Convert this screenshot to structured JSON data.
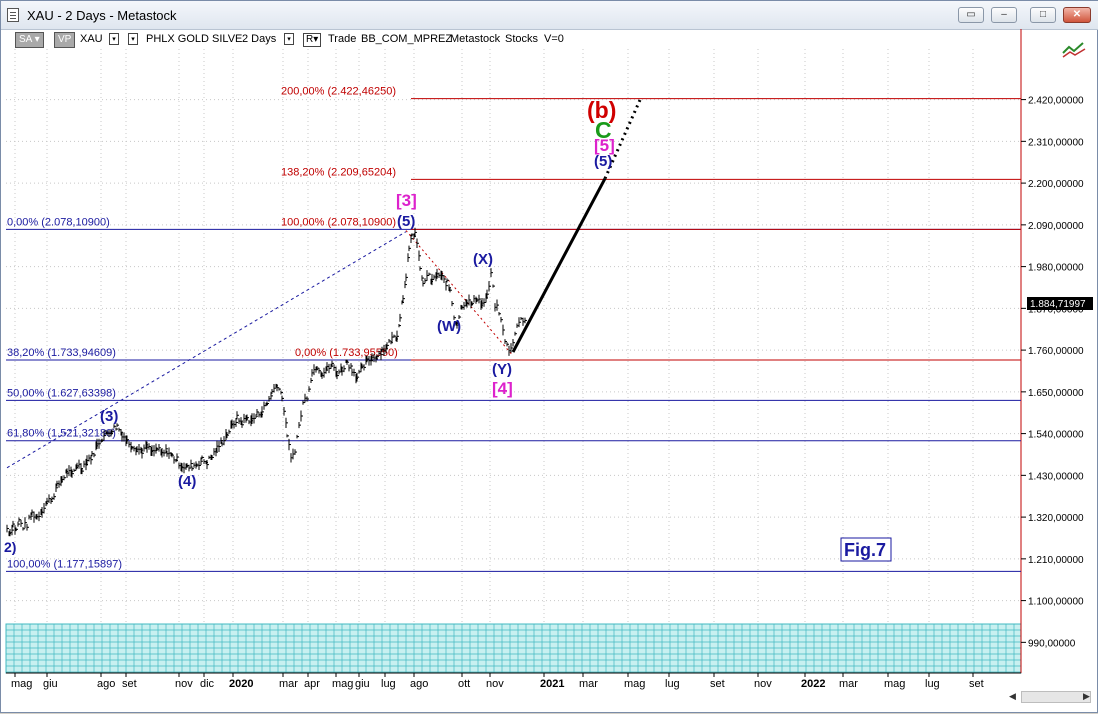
{
  "window": {
    "title": "XAU - 2 Days - Metastock"
  },
  "toolbar": {
    "sa_label": "SA",
    "vp_label": "VP",
    "symbol": "XAU",
    "security_name": "PHLX GOLD SILVE",
    "periodicity": "2 Days",
    "r_label": "R",
    "trade_label": "Trade",
    "template": "BB_COM_MPREZ",
    "source": "Metastock",
    "type": "Stocks",
    "volume": "V=0"
  },
  "figure_label": "Fig.7",
  "last_price_label": "1.884,71997",
  "chart_data": {
    "type": "bar",
    "title": "",
    "price_axis": {
      "ylim": [
        900,
        2520
      ],
      "ticks": [
        {
          "value": 2420,
          "label": "2.420,00000"
        },
        {
          "value": 2310,
          "label": "2.310,00000"
        },
        {
          "value": 2200,
          "label": "2.200,00000"
        },
        {
          "value": 2090,
          "label": "2.090,00000"
        },
        {
          "value": 1980,
          "label": "1.980,00000"
        },
        {
          "value": 1870,
          "label": "1.870,00000"
        },
        {
          "value": 1760,
          "label": "1.760,00000"
        },
        {
          "value": 1650,
          "label": "1.650,00000"
        },
        {
          "value": 1540,
          "label": "1.540,00000"
        },
        {
          "value": 1430,
          "label": "1.430,00000"
        },
        {
          "value": 1320,
          "label": "1.320,00000"
        },
        {
          "value": 1210,
          "label": "1.210,00000"
        },
        {
          "value": 1100,
          "label": "1.100,00000"
        },
        {
          "value": 990,
          "label": "990,00000"
        }
      ]
    },
    "time_axis": {
      "labels": [
        "mag",
        "giu",
        "ago",
        "set",
        "nov",
        "dic",
        "2020",
        "mar",
        "apr",
        "mag",
        "giu",
        "lug",
        "ago",
        "ott",
        "nov",
        "2021",
        "mar",
        "mag",
        "lug",
        "set",
        "nov",
        "2022",
        "mar",
        "mag",
        "lug",
        "set"
      ]
    },
    "grid": true,
    "fib_levels": [
      {
        "label": "0,00% (2.078,10900)",
        "value": 2078.109,
        "color": "#1a1aa0"
      },
      {
        "label": "38,20% (1.733,94609)",
        "value": 1733.94609,
        "color": "#1a1aa0"
      },
      {
        "label": "50,00% (1.627,63398)",
        "value": 1627.63398,
        "color": "#1a1aa0"
      },
      {
        "label": "61,80% (1.521,32188)",
        "value": 1521.32188,
        "color": "#1a1aa0"
      },
      {
        "label": "100,00% (1.177,15897)",
        "value": 1177.15897,
        "color": "#1a1aa0"
      },
      {
        "label": "200,00% (2.422,46250)",
        "value": 2422.4625,
        "color": "#c00000"
      },
      {
        "label": "138,20% (2.209,65204)",
        "value": 2209.65204,
        "color": "#c00000"
      },
      {
        "label": "100,00% (2.078,10900)",
        "value": 2078.109,
        "color": "#c00000"
      },
      {
        "label": "0,00% (1.733,95550)",
        "value": 1733.9555,
        "color": "#c00000"
      }
    ],
    "price_path": [
      [
        0,
        1290
      ],
      [
        3,
        1280
      ],
      [
        6,
        1300
      ],
      [
        9,
        1285
      ],
      [
        12,
        1310
      ],
      [
        16,
        1295
      ],
      [
        20,
        1300
      ],
      [
        25,
        1330
      ],
      [
        30,
        1320
      ],
      [
        35,
        1340
      ],
      [
        40,
        1360
      ],
      [
        45,
        1370
      ],
      [
        50,
        1400
      ],
      [
        55,
        1420
      ],
      [
        60,
        1440
      ],
      [
        65,
        1430
      ],
      [
        70,
        1460
      ],
      [
        75,
        1450
      ],
      [
        80,
        1470
      ],
      [
        85,
        1480
      ],
      [
        90,
        1510
      ],
      [
        95,
        1530
      ],
      [
        100,
        1540
      ],
      [
        105,
        1550
      ],
      [
        110,
        1560
      ],
      [
        115,
        1540
      ],
      [
        120,
        1520
      ],
      [
        125,
        1510
      ],
      [
        130,
        1500
      ],
      [
        135,
        1495
      ],
      [
        140,
        1505
      ],
      [
        145,
        1490
      ],
      [
        150,
        1500
      ],
      [
        155,
        1485
      ],
      [
        160,
        1495
      ],
      [
        165,
        1480
      ],
      [
        170,
        1470
      ],
      [
        175,
        1455
      ],
      [
        180,
        1450
      ],
      [
        185,
        1455
      ],
      [
        190,
        1460
      ],
      [
        195,
        1470
      ],
      [
        200,
        1465
      ],
      [
        205,
        1480
      ],
      [
        210,
        1500
      ],
      [
        215,
        1520
      ],
      [
        220,
        1540
      ],
      [
        225,
        1560
      ],
      [
        230,
        1580
      ],
      [
        235,
        1570
      ],
      [
        240,
        1580
      ],
      [
        245,
        1575
      ],
      [
        250,
        1590
      ],
      [
        255,
        1600
      ],
      [
        260,
        1620
      ],
      [
        265,
        1650
      ],
      [
        270,
        1670
      ],
      [
        275,
        1640
      ],
      [
        280,
        1540
      ],
      [
        284,
        1470
      ],
      [
        288,
        1500
      ],
      [
        292,
        1560
      ],
      [
        296,
        1620
      ],
      [
        300,
        1640
      ],
      [
        305,
        1700
      ],
      [
        310,
        1720
      ],
      [
        315,
        1700
      ],
      [
        320,
        1710
      ],
      [
        325,
        1720
      ],
      [
        330,
        1700
      ],
      [
        335,
        1710
      ],
      [
        340,
        1730
      ],
      [
        345,
        1710
      ],
      [
        350,
        1690
      ],
      [
        355,
        1710
      ],
      [
        360,
        1730
      ],
      [
        365,
        1740
      ],
      [
        370,
        1745
      ],
      [
        375,
        1760
      ],
      [
        380,
        1770
      ],
      [
        385,
        1790
      ],
      [
        390,
        1800
      ],
      [
        393,
        1850
      ],
      [
        396,
        1900
      ],
      [
        399,
        1960
      ],
      [
        402,
        2020
      ],
      [
        405,
        2060
      ],
      [
        408,
        2070
      ],
      [
        410,
        2040
      ],
      [
        413,
        1980
      ],
      [
        416,
        1930
      ],
      [
        420,
        1960
      ],
      [
        425,
        1940
      ],
      [
        430,
        1960
      ],
      [
        435,
        1950
      ],
      [
        440,
        1935
      ],
      [
        443,
        1920
      ],
      [
        447,
        1850
      ],
      [
        450,
        1830
      ],
      [
        455,
        1880
      ],
      [
        460,
        1890
      ],
      [
        465,
        1880
      ],
      [
        470,
        1900
      ],
      [
        475,
        1880
      ],
      [
        480,
        1900
      ],
      [
        484,
        1960
      ],
      [
        488,
        1880
      ],
      [
        492,
        1860
      ],
      [
        496,
        1810
      ],
      [
        500,
        1770
      ],
      [
        504,
        1760
      ],
      [
        508,
        1800
      ],
      [
        512,
        1840
      ],
      [
        516,
        1840
      ],
      [
        520,
        1850
      ]
    ],
    "wave_labels": [
      {
        "text": "2)",
        "color": "#1a1aa0"
      },
      {
        "text": "(3)",
        "color": "#1a1aa0"
      },
      {
        "text": "(4)",
        "color": "#1a1aa0"
      },
      {
        "text": "[3]",
        "color": "#dd22cc"
      },
      {
        "text": "(5)",
        "color": "#1a1aa0"
      },
      {
        "text": "(W)",
        "color": "#1a1aa0"
      },
      {
        "text": "(X)",
        "color": "#1a1aa0"
      },
      {
        "text": "(Y)",
        "color": "#1a1aa0"
      },
      {
        "text": "[4]",
        "color": "#dd22cc"
      },
      {
        "text": "(b)",
        "color": "#d00000"
      },
      {
        "text": "C",
        "color": "#1a9a1a"
      },
      {
        "text": "[5]",
        "color": "#dd22cc"
      },
      {
        "text": "(5)",
        "color": "#1a1aa0"
      }
    ],
    "colors": {
      "bars": "#000000",
      "blue_lines": "#1a1aa0",
      "red_lines": "#c00000",
      "volume_fill": "#c8f0f0",
      "volume_grid": "#40b8c0"
    }
  }
}
